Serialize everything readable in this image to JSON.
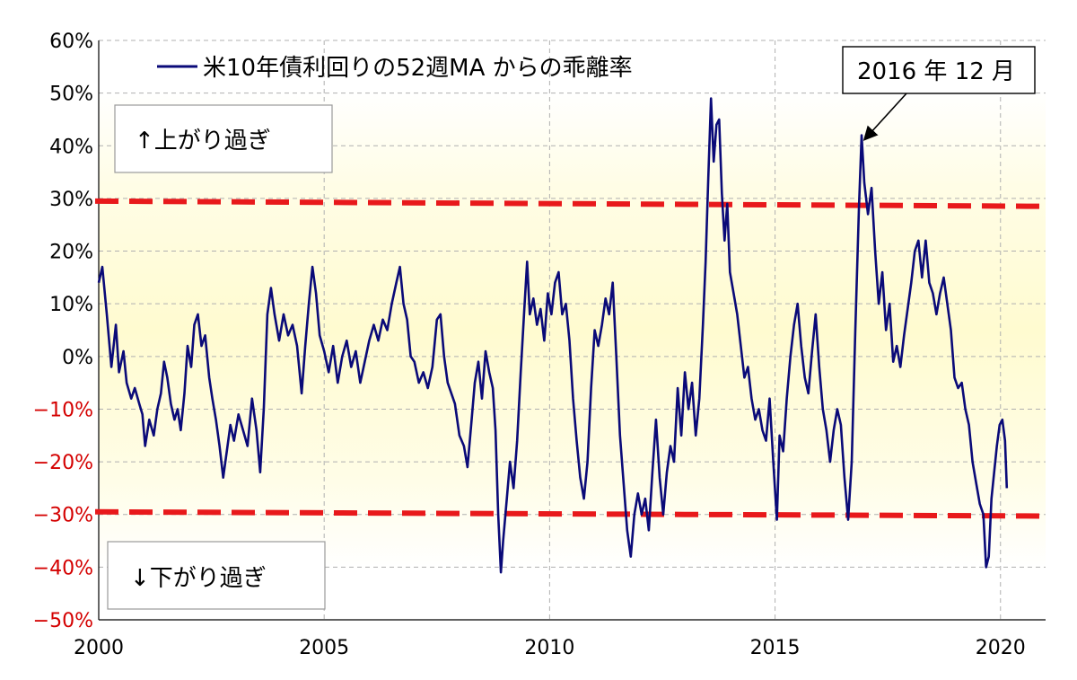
{
  "chart_data": {
    "type": "line",
    "title": "",
    "xlabel": "",
    "ylabel": "",
    "xlim": [
      2000,
      2021
    ],
    "ylim": [
      -50,
      60
    ],
    "x_ticks": [
      "2000",
      "2005",
      "2010",
      "2015",
      "2020"
    ],
    "y_ticks": [
      "60%",
      "50%",
      "40%",
      "30%",
      "20%",
      "10%",
      "0%",
      "−10%",
      "−20%",
      "−30%",
      "−40%",
      "−50%"
    ],
    "grid": true,
    "legend_position": "top-left",
    "series": [
      {
        "name": "米10年債利回りの52週MA からの乖離率",
        "color": "#0a0a78",
        "points": [
          [
            2000.0,
            14
          ],
          [
            2000.08,
            17
          ],
          [
            2000.18,
            8
          ],
          [
            2000.28,
            -2
          ],
          [
            2000.38,
            6
          ],
          [
            2000.45,
            -3
          ],
          [
            2000.55,
            1
          ],
          [
            2000.62,
            -5
          ],
          [
            2000.72,
            -8
          ],
          [
            2000.8,
            -6
          ],
          [
            2000.9,
            -9
          ],
          [
            2000.97,
            -11
          ],
          [
            2001.03,
            -17
          ],
          [
            2001.12,
            -12
          ],
          [
            2001.22,
            -15
          ],
          [
            2001.3,
            -10
          ],
          [
            2001.38,
            -7
          ],
          [
            2001.45,
            -1
          ],
          [
            2001.52,
            -4
          ],
          [
            2001.6,
            -9
          ],
          [
            2001.68,
            -12
          ],
          [
            2001.75,
            -10
          ],
          [
            2001.82,
            -14
          ],
          [
            2001.9,
            -7
          ],
          [
            2001.97,
            2
          ],
          [
            2002.05,
            -2
          ],
          [
            2002.12,
            6
          ],
          [
            2002.2,
            8
          ],
          [
            2002.28,
            2
          ],
          [
            2002.36,
            4
          ],
          [
            2002.45,
            -4
          ],
          [
            2002.52,
            -8
          ],
          [
            2002.6,
            -12
          ],
          [
            2002.68,
            -17
          ],
          [
            2002.76,
            -23
          ],
          [
            2002.84,
            -18
          ],
          [
            2002.92,
            -13
          ],
          [
            2003.0,
            -16
          ],
          [
            2003.1,
            -11
          ],
          [
            2003.2,
            -14
          ],
          [
            2003.3,
            -17
          ],
          [
            2003.4,
            -8
          ],
          [
            2003.5,
            -14
          ],
          [
            2003.58,
            -22
          ],
          [
            2003.66,
            -10
          ],
          [
            2003.74,
            8
          ],
          [
            2003.82,
            13
          ],
          [
            2003.9,
            8
          ],
          [
            2004.0,
            3
          ],
          [
            2004.1,
            8
          ],
          [
            2004.2,
            4
          ],
          [
            2004.3,
            6
          ],
          [
            2004.4,
            2
          ],
          [
            2004.5,
            -7
          ],
          [
            2004.58,
            2
          ],
          [
            2004.66,
            10
          ],
          [
            2004.74,
            17
          ],
          [
            2004.82,
            12
          ],
          [
            2004.9,
            4
          ],
          [
            2005.0,
            1
          ],
          [
            2005.1,
            -3
          ],
          [
            2005.2,
            2
          ],
          [
            2005.3,
            -5
          ],
          [
            2005.4,
            0
          ],
          [
            2005.5,
            3
          ],
          [
            2005.6,
            -2
          ],
          [
            2005.7,
            1
          ],
          [
            2005.8,
            -5
          ],
          [
            2005.9,
            -1
          ],
          [
            2006.0,
            3
          ],
          [
            2006.1,
            6
          ],
          [
            2006.2,
            3
          ],
          [
            2006.3,
            7
          ],
          [
            2006.4,
            5
          ],
          [
            2006.5,
            10
          ],
          [
            2006.6,
            14
          ],
          [
            2006.68,
            17
          ],
          [
            2006.76,
            10
          ],
          [
            2006.84,
            7
          ],
          [
            2006.92,
            0
          ],
          [
            2007.0,
            -1
          ],
          [
            2007.1,
            -5
          ],
          [
            2007.2,
            -3
          ],
          [
            2007.3,
            -6
          ],
          [
            2007.4,
            -2
          ],
          [
            2007.5,
            7
          ],
          [
            2007.58,
            8
          ],
          [
            2007.66,
            0
          ],
          [
            2007.74,
            -5
          ],
          [
            2007.82,
            -7
          ],
          [
            2007.9,
            -9
          ],
          [
            2008.0,
            -15
          ],
          [
            2008.1,
            -17
          ],
          [
            2008.18,
            -21
          ],
          [
            2008.26,
            -13
          ],
          [
            2008.34,
            -5
          ],
          [
            2008.42,
            -1
          ],
          [
            2008.5,
            -8
          ],
          [
            2008.58,
            1
          ],
          [
            2008.66,
            -3
          ],
          [
            2008.74,
            -6
          ],
          [
            2008.8,
            -14
          ],
          [
            2008.86,
            -30
          ],
          [
            2008.92,
            -41
          ],
          [
            2008.97,
            -35
          ],
          [
            2009.05,
            -27
          ],
          [
            2009.12,
            -20
          ],
          [
            2009.2,
            -25
          ],
          [
            2009.28,
            -16
          ],
          [
            2009.36,
            -3
          ],
          [
            2009.44,
            9
          ],
          [
            2009.5,
            18
          ],
          [
            2009.56,
            8
          ],
          [
            2009.64,
            11
          ],
          [
            2009.72,
            6
          ],
          [
            2009.8,
            9
          ],
          [
            2009.88,
            3
          ],
          [
            2009.96,
            12
          ],
          [
            2010.04,
            8
          ],
          [
            2010.12,
            14
          ],
          [
            2010.2,
            16
          ],
          [
            2010.28,
            8
          ],
          [
            2010.36,
            10
          ],
          [
            2010.44,
            3
          ],
          [
            2010.52,
            -8
          ],
          [
            2010.6,
            -16
          ],
          [
            2010.68,
            -23
          ],
          [
            2010.76,
            -27
          ],
          [
            2010.84,
            -20
          ],
          [
            2010.92,
            -6
          ],
          [
            2011.0,
            5
          ],
          [
            2011.08,
            2
          ],
          [
            2011.16,
            6
          ],
          [
            2011.24,
            11
          ],
          [
            2011.32,
            8
          ],
          [
            2011.4,
            14
          ],
          [
            2011.48,
            0
          ],
          [
            2011.56,
            -15
          ],
          [
            2011.64,
            -24
          ],
          [
            2011.72,
            -33
          ],
          [
            2011.8,
            -38
          ],
          [
            2011.88,
            -30
          ],
          [
            2011.96,
            -26
          ],
          [
            2012.04,
            -30
          ],
          [
            2012.12,
            -27
          ],
          [
            2012.2,
            -33
          ],
          [
            2012.28,
            -22
          ],
          [
            2012.36,
            -12
          ],
          [
            2012.44,
            -23
          ],
          [
            2012.52,
            -30
          ],
          [
            2012.6,
            -22
          ],
          [
            2012.68,
            -17
          ],
          [
            2012.76,
            -20
          ],
          [
            2012.84,
            -6
          ],
          [
            2012.92,
            -15
          ],
          [
            2013.0,
            -3
          ],
          [
            2013.08,
            -10
          ],
          [
            2013.16,
            -5
          ],
          [
            2013.24,
            -15
          ],
          [
            2013.32,
            -8
          ],
          [
            2013.4,
            6
          ],
          [
            2013.46,
            18
          ],
          [
            2013.52,
            34
          ],
          [
            2013.58,
            49
          ],
          [
            2013.64,
            37
          ],
          [
            2013.7,
            44
          ],
          [
            2013.76,
            45
          ],
          [
            2013.82,
            31
          ],
          [
            2013.88,
            22
          ],
          [
            2013.94,
            29
          ],
          [
            2014.0,
            16
          ],
          [
            2014.08,
            12
          ],
          [
            2014.16,
            8
          ],
          [
            2014.24,
            2
          ],
          [
            2014.32,
            -4
          ],
          [
            2014.4,
            -2
          ],
          [
            2014.48,
            -8
          ],
          [
            2014.56,
            -12
          ],
          [
            2014.64,
            -10
          ],
          [
            2014.72,
            -14
          ],
          [
            2014.8,
            -16
          ],
          [
            2014.88,
            -8
          ],
          [
            2014.96,
            -20
          ],
          [
            2015.04,
            -31
          ],
          [
            2015.1,
            -15
          ],
          [
            2015.18,
            -18
          ],
          [
            2015.26,
            -8
          ],
          [
            2015.34,
            0
          ],
          [
            2015.42,
            6
          ],
          [
            2015.5,
            10
          ],
          [
            2015.58,
            2
          ],
          [
            2015.66,
            -4
          ],
          [
            2015.74,
            -7
          ],
          [
            2015.82,
            1
          ],
          [
            2015.9,
            8
          ],
          [
            2015.98,
            -2
          ],
          [
            2016.06,
            -10
          ],
          [
            2016.14,
            -14
          ],
          [
            2016.22,
            -20
          ],
          [
            2016.3,
            -14
          ],
          [
            2016.38,
            -10
          ],
          [
            2016.46,
            -13
          ],
          [
            2016.54,
            -23
          ],
          [
            2016.62,
            -31
          ],
          [
            2016.7,
            -20
          ],
          [
            2016.78,
            5
          ],
          [
            2016.86,
            28
          ],
          [
            2016.92,
            42
          ],
          [
            2016.98,
            33
          ],
          [
            2017.06,
            27
          ],
          [
            2017.14,
            32
          ],
          [
            2017.22,
            20
          ],
          [
            2017.3,
            10
          ],
          [
            2017.38,
            16
          ],
          [
            2017.46,
            5
          ],
          [
            2017.54,
            10
          ],
          [
            2017.62,
            -1
          ],
          [
            2017.7,
            2
          ],
          [
            2017.78,
            -2
          ],
          [
            2017.86,
            4
          ],
          [
            2017.94,
            9
          ],
          [
            2018.02,
            14
          ],
          [
            2018.1,
            20
          ],
          [
            2018.18,
            22
          ],
          [
            2018.26,
            15
          ],
          [
            2018.34,
            22
          ],
          [
            2018.42,
            14
          ],
          [
            2018.5,
            12
          ],
          [
            2018.58,
            8
          ],
          [
            2018.66,
            12
          ],
          [
            2018.74,
            15
          ],
          [
            2018.82,
            10
          ],
          [
            2018.9,
            5
          ],
          [
            2018.98,
            -4
          ],
          [
            2019.06,
            -6
          ],
          [
            2019.14,
            -5
          ],
          [
            2019.22,
            -10
          ],
          [
            2019.3,
            -13
          ],
          [
            2019.38,
            -20
          ],
          [
            2019.46,
            -24
          ],
          [
            2019.54,
            -28
          ],
          [
            2019.62,
            -30
          ],
          [
            2019.68,
            -40
          ],
          [
            2019.74,
            -38
          ],
          [
            2019.8,
            -27
          ],
          [
            2019.86,
            -22
          ],
          [
            2019.92,
            -17
          ],
          [
            2019.98,
            -13
          ],
          [
            2020.04,
            -12
          ],
          [
            2020.1,
            -16
          ],
          [
            2020.14,
            -25
          ]
        ]
      }
    ],
    "reference_lines": [
      {
        "label": "+30%",
        "y_start": 29.5,
        "y_end": 28.5,
        "color": "#e8191b",
        "style": "dashed"
      },
      {
        "label": "-30%",
        "y_start": -29.5,
        "y_end": -30.3,
        "color": "#e8191b",
        "style": "dashed"
      }
    ],
    "annotations": {
      "upper_zone_label": "↑上がり過ぎ",
      "lower_zone_label": "↓下がり過ぎ",
      "callout_label": "2016 年 12 月",
      "callout_point": [
        2016.92,
        42
      ]
    },
    "colors": {
      "series": "#0a0a78",
      "ref_line": "#e8191b",
      "positive_tick": "#000000",
      "negative_tick": "#d40000",
      "grid": "#b0b0b0",
      "zone_fill": "#fffbd0"
    }
  }
}
